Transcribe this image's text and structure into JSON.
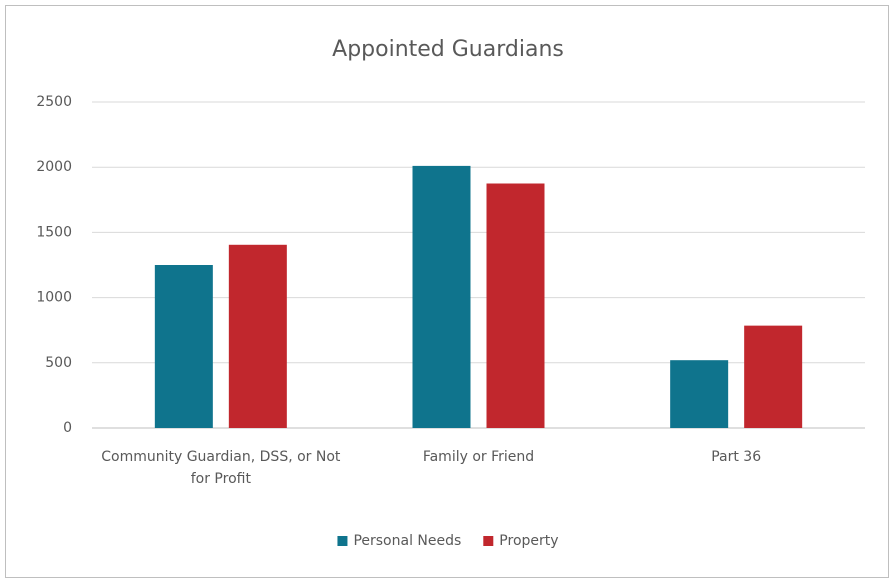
{
  "chart_data": {
    "type": "bar",
    "title": "Appointed Guardians",
    "categories": [
      "Community Guardian, DSS, or Not for Profit",
      "Family or Friend",
      "Part 36"
    ],
    "series": [
      {
        "name": "Personal Needs",
        "color": "#0f748d",
        "values": [
          1250,
          2010,
          520
        ]
      },
      {
        "name": "Property",
        "color": "#c1272d",
        "values": [
          1405,
          1875,
          785
        ]
      }
    ],
    "ylim": [
      0,
      2500
    ],
    "yticks": [
      0,
      500,
      1000,
      1500,
      2000,
      2500
    ],
    "grid": true,
    "legend": "bottom"
  }
}
